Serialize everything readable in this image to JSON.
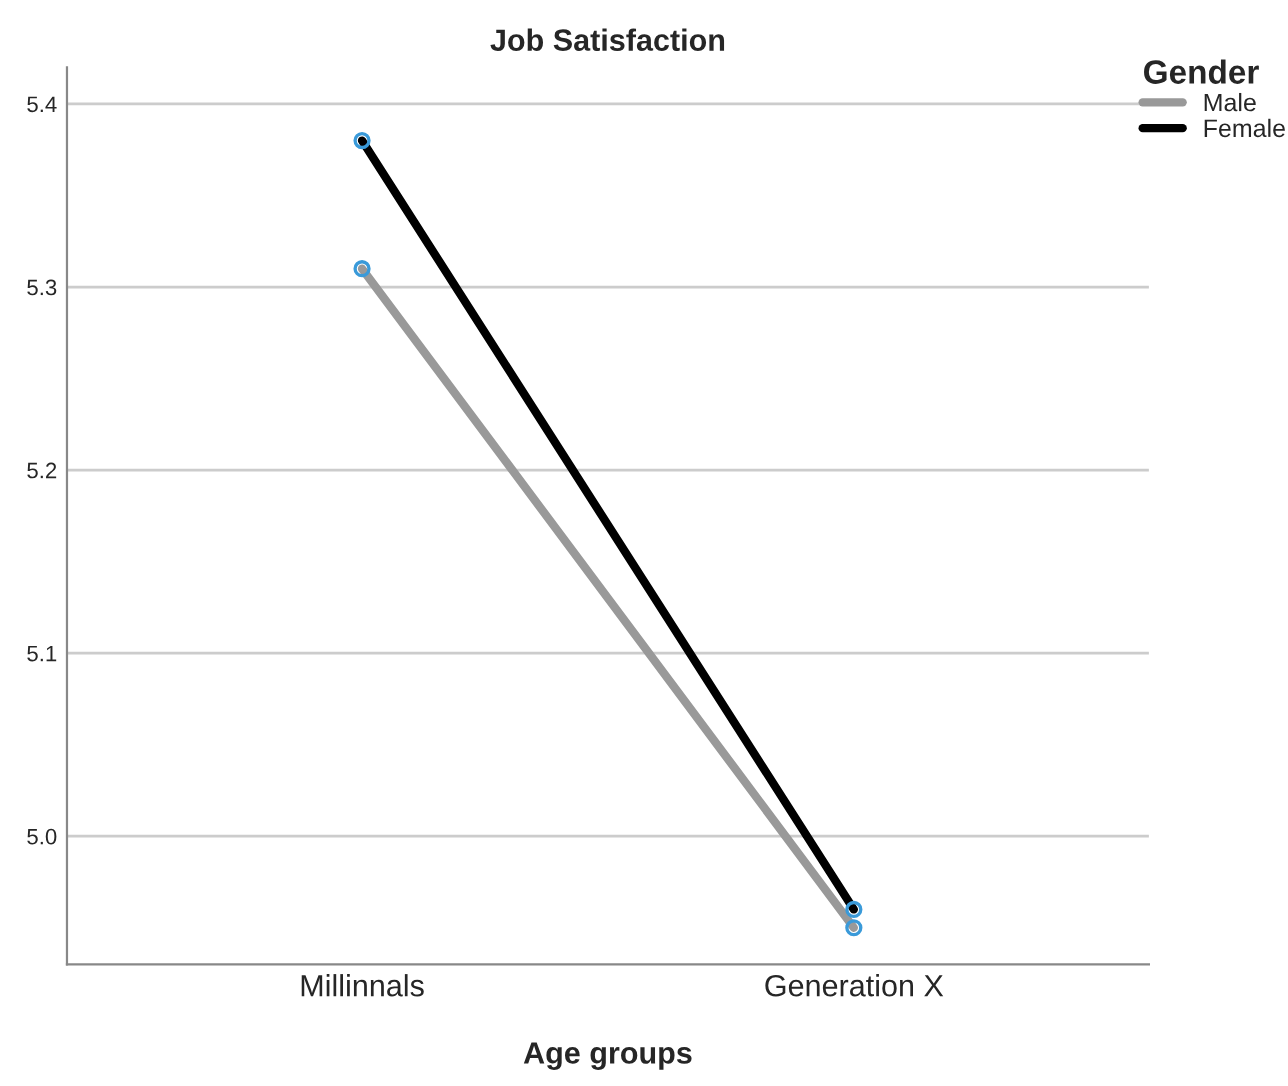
{
  "chart_data": {
    "type": "line",
    "title": "Job Satisfaction",
    "xlabel": "Age groups",
    "legend_title": "Gender",
    "categories": [
      "Millinnals",
      "Generation X"
    ],
    "series": [
      {
        "name": "Male",
        "color": "#999999",
        "values": [
          5.31,
          4.95
        ]
      },
      {
        "name": "Female",
        "color": "#000000",
        "values": [
          5.38,
          4.96
        ]
      }
    ],
    "ylim": [
      4.93,
      5.42
    ],
    "yticks": [
      {
        "value": 5.0,
        "label": "5.0"
      },
      {
        "value": 5.1,
        "label": "5.1"
      },
      {
        "value": 5.2,
        "label": "5.2"
      },
      {
        "value": 5.3,
        "label": "5.3"
      },
      {
        "value": 5.4,
        "label": "5.4"
      }
    ],
    "grid": "y",
    "legend": "top right",
    "marker": "circle",
    "line_style": "solid"
  }
}
